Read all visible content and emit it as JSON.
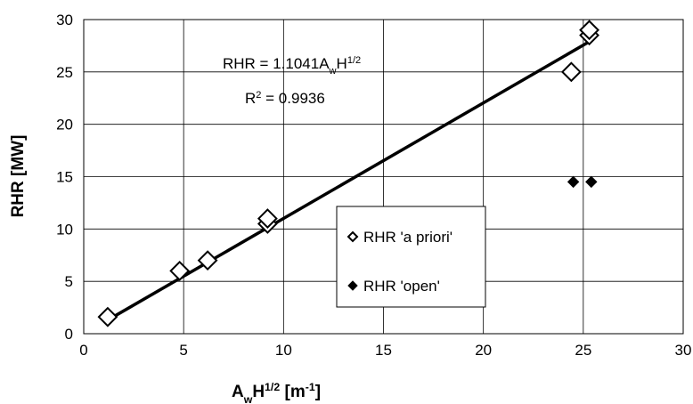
{
  "chart_data": {
    "type": "scatter",
    "x_label": [
      {
        "text": "A"
      },
      {
        "text": "w",
        "shift": "sub"
      },
      {
        "text": "H"
      },
      {
        "text": "1/2",
        "shift": "super"
      },
      {
        "text": " [m"
      },
      {
        "text": "-1",
        "shift": "super"
      },
      {
        "text": "]"
      }
    ],
    "y_label": "RHR [MW]",
    "xlim": [
      0,
      30
    ],
    "xticks": [
      0,
      5,
      10,
      15,
      20,
      25,
      30
    ],
    "ylim": [
      0,
      30
    ],
    "yticks": [
      0,
      5,
      10,
      15,
      20,
      25,
      30
    ],
    "grid": true,
    "series": [
      {
        "name": "RHR 'a priori'",
        "marker": "open-diamond",
        "color": "#000000",
        "x": [
          1.2,
          4.8,
          6.2,
          9.2,
          9.2,
          24.4,
          25.3,
          25.3
        ],
        "values": [
          1.6,
          6.0,
          7.0,
          10.5,
          11.0,
          25.0,
          28.5,
          29.0
        ]
      },
      {
        "name": "RHR 'open'",
        "marker": "filled-diamond",
        "color": "#000000",
        "x": [
          24.5,
          25.4
        ],
        "values": [
          14.5,
          14.5
        ]
      }
    ],
    "trendline": {
      "x": [
        1.2,
        25.4
      ],
      "values": [
        1.3,
        28.0
      ],
      "color": "#000000"
    },
    "annotations": [
      [
        {
          "text": "RHR = 1.1041A"
        },
        {
          "text": "w",
          "shift": "sub"
        },
        {
          "text": "H"
        },
        {
          "text": "1/2",
          "shift": "super"
        }
      ],
      [
        {
          "text": "R"
        },
        {
          "text": "2",
          "shift": "super"
        },
        {
          "text": " = 0.9936"
        }
      ]
    ]
  }
}
